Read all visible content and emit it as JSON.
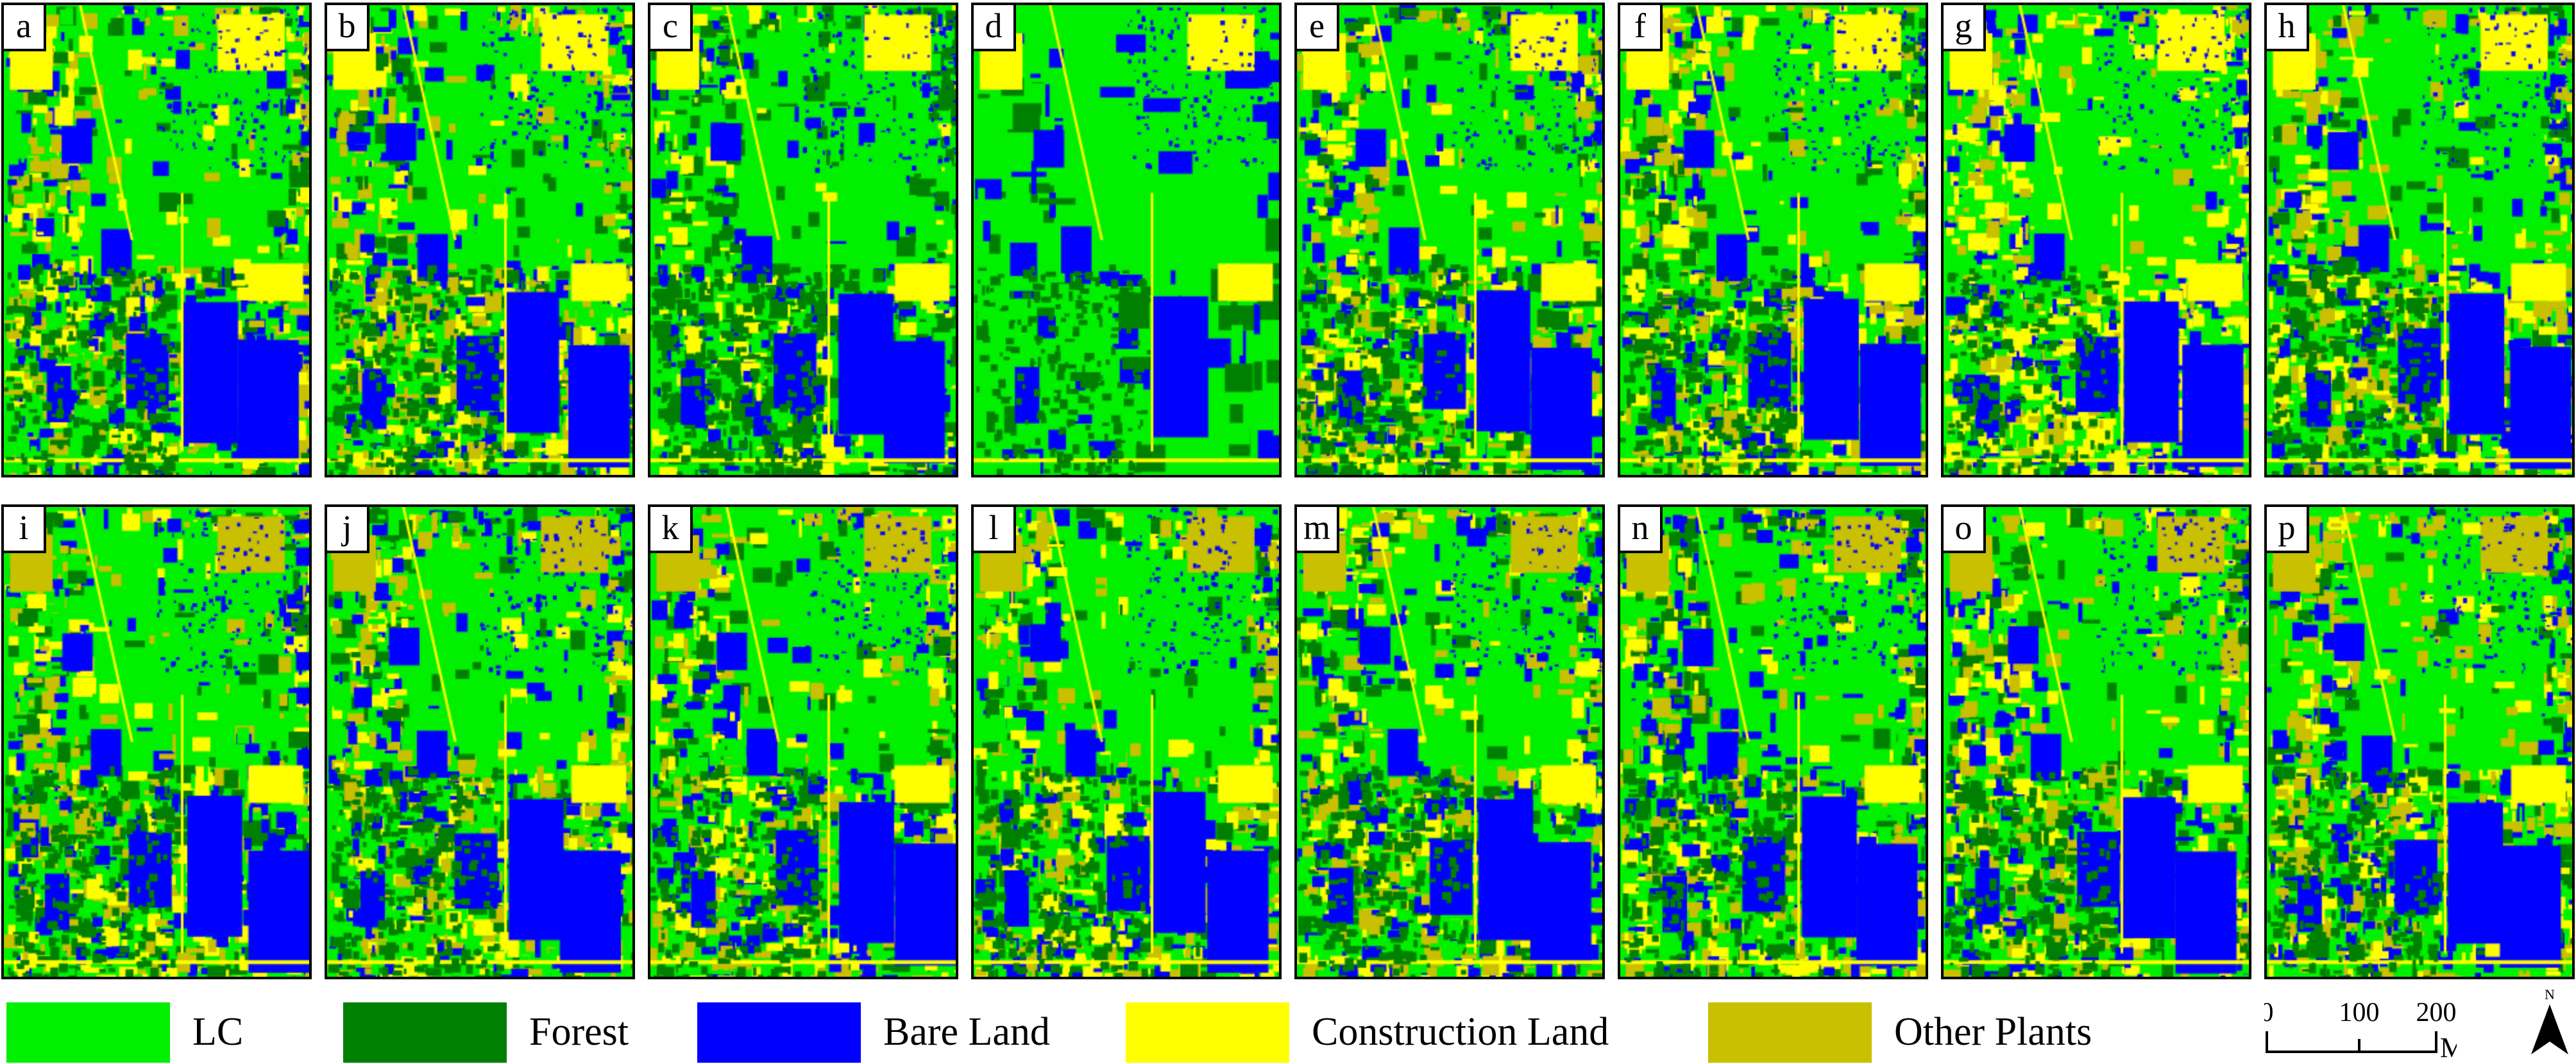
{
  "panels": [
    {
      "label": "a"
    },
    {
      "label": "b"
    },
    {
      "label": "c"
    },
    {
      "label": "d"
    },
    {
      "label": "e"
    },
    {
      "label": "f"
    },
    {
      "label": "g"
    },
    {
      "label": "h"
    },
    {
      "label": "i"
    },
    {
      "label": "j"
    },
    {
      "label": "k"
    },
    {
      "label": "l"
    },
    {
      "label": "m"
    },
    {
      "label": "n"
    },
    {
      "label": "o"
    },
    {
      "label": "p"
    }
  ],
  "legend": [
    {
      "label": "LC",
      "color": "#00f000"
    },
    {
      "label": "Forest",
      "color": "#008000"
    },
    {
      "label": "Bare Land",
      "color": "#0000ff"
    },
    {
      "label": "Construction Land",
      "color": "#ffff00"
    },
    {
      "label": "Other Plants",
      "color": "#c8c000"
    }
  ],
  "scale_bar": {
    "ticks": [
      "0",
      "100",
      "200"
    ],
    "unit": "M"
  },
  "north_arrow": {
    "label": "N"
  }
}
